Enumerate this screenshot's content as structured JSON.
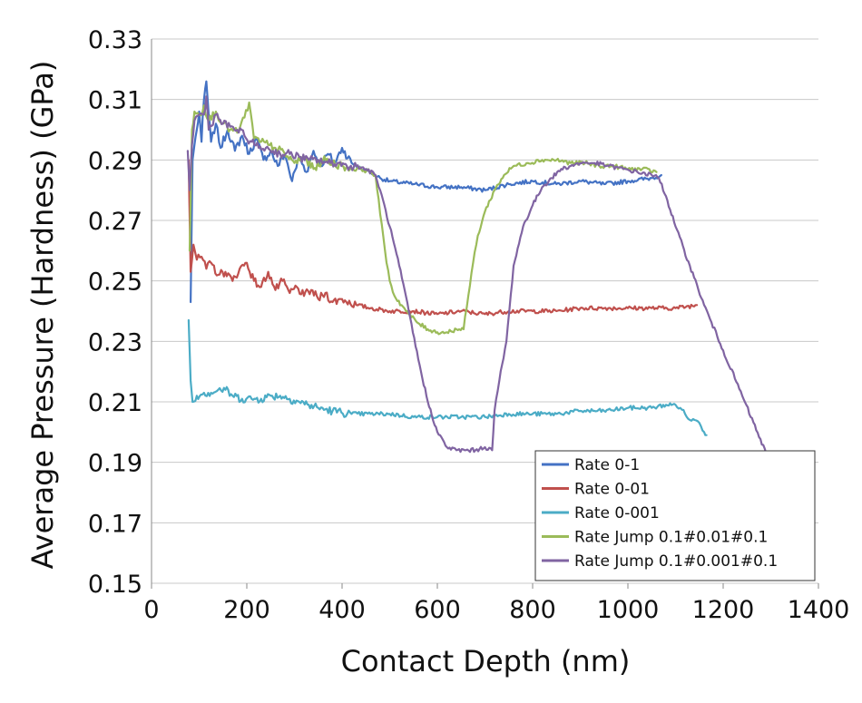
{
  "chart_data": {
    "type": "line",
    "title": "",
    "xlabel": "Contact Depth (nm)",
    "ylabel": "Average Pressure (Hardness) (GPa)",
    "xlim": [
      0,
      1400
    ],
    "ylim": [
      0.15,
      0.33
    ],
    "xticks": [
      0,
      200,
      400,
      600,
      800,
      1000,
      1200,
      1400
    ],
    "xtick_labels": [
      "0",
      "200",
      "400",
      "600",
      "800",
      "1000",
      "1200",
      "1400"
    ],
    "yticks": [
      0.15,
      0.17,
      0.19,
      0.21,
      0.23,
      0.25,
      0.27,
      0.29,
      0.31,
      0.33
    ],
    "ytick_labels": [
      "0.15",
      "0.17",
      "0.19",
      "0.21",
      "0.23",
      "0.25",
      "0.27",
      "0.29",
      "0.31",
      "0.33"
    ],
    "grid": "horizontal",
    "legend_position": "bottom-right",
    "series": [
      {
        "name": "Rate 0-1",
        "color": "#4472C4",
        "points": [
          [
            82,
            0.243
          ],
          [
            86,
            0.29
          ],
          [
            90,
            0.295
          ],
          [
            95,
            0.3
          ],
          [
            100,
            0.306
          ],
          [
            105,
            0.296
          ],
          [
            110,
            0.31
          ],
          [
            115,
            0.316
          ],
          [
            120,
            0.305
          ],
          [
            125,
            0.296
          ],
          [
            135,
            0.302
          ],
          [
            145,
            0.294
          ],
          [
            160,
            0.3
          ],
          [
            175,
            0.293
          ],
          [
            190,
            0.298
          ],
          [
            205,
            0.292
          ],
          [
            220,
            0.297
          ],
          [
            235,
            0.29
          ],
          [
            250,
            0.293
          ],
          [
            265,
            0.288
          ],
          [
            280,
            0.292
          ],
          [
            295,
            0.283
          ],
          [
            310,
            0.291
          ],
          [
            325,
            0.286
          ],
          [
            340,
            0.293
          ],
          [
            355,
            0.288
          ],
          [
            370,
            0.292
          ],
          [
            385,
            0.289
          ],
          [
            400,
            0.294
          ],
          [
            420,
            0.289
          ],
          [
            440,
            0.287
          ],
          [
            460,
            0.286
          ],
          [
            480,
            0.284
          ],
          [
            500,
            0.283
          ],
          [
            550,
            0.282
          ],
          [
            600,
            0.281
          ],
          [
            650,
            0.281
          ],
          [
            700,
            0.28
          ],
          [
            750,
            0.282
          ],
          [
            800,
            0.283
          ],
          [
            850,
            0.282
          ],
          [
            900,
            0.283
          ],
          [
            950,
            0.282
          ],
          [
            1000,
            0.283
          ],
          [
            1050,
            0.284
          ],
          [
            1070,
            0.285
          ]
        ]
      },
      {
        "name": "Rate 0-01",
        "color": "#C0504D",
        "points": [
          [
            78,
            0.29
          ],
          [
            82,
            0.253
          ],
          [
            88,
            0.262
          ],
          [
            95,
            0.257
          ],
          [
            105,
            0.258
          ],
          [
            115,
            0.254
          ],
          [
            125,
            0.256
          ],
          [
            140,
            0.252
          ],
          [
            155,
            0.253
          ],
          [
            170,
            0.25
          ],
          [
            185,
            0.254
          ],
          [
            200,
            0.256
          ],
          [
            215,
            0.25
          ],
          [
            230,
            0.248
          ],
          [
            245,
            0.253
          ],
          [
            260,
            0.247
          ],
          [
            275,
            0.25
          ],
          [
            290,
            0.246
          ],
          [
            305,
            0.248
          ],
          [
            320,
            0.245
          ],
          [
            335,
            0.247
          ],
          [
            350,
            0.244
          ],
          [
            365,
            0.246
          ],
          [
            380,
            0.243
          ],
          [
            400,
            0.244
          ],
          [
            430,
            0.242
          ],
          [
            460,
            0.241
          ],
          [
            500,
            0.24
          ],
          [
            550,
            0.24
          ],
          [
            600,
            0.239
          ],
          [
            650,
            0.24
          ],
          [
            700,
            0.239
          ],
          [
            750,
            0.24
          ],
          [
            800,
            0.24
          ],
          [
            850,
            0.24
          ],
          [
            900,
            0.241
          ],
          [
            950,
            0.241
          ],
          [
            1000,
            0.241
          ],
          [
            1050,
            0.241
          ],
          [
            1100,
            0.241
          ],
          [
            1145,
            0.242
          ]
        ]
      },
      {
        "name": "Rate 0-001",
        "color": "#4BACC6",
        "points": [
          [
            78,
            0.237
          ],
          [
            82,
            0.217
          ],
          [
            86,
            0.21
          ],
          [
            95,
            0.212
          ],
          [
            110,
            0.213
          ],
          [
            125,
            0.213
          ],
          [
            140,
            0.214
          ],
          [
            155,
            0.214
          ],
          [
            170,
            0.212
          ],
          [
            190,
            0.211
          ],
          [
            210,
            0.211
          ],
          [
            230,
            0.211
          ],
          [
            250,
            0.212
          ],
          [
            270,
            0.212
          ],
          [
            290,
            0.211
          ],
          [
            310,
            0.21
          ],
          [
            330,
            0.209
          ],
          [
            350,
            0.208
          ],
          [
            380,
            0.207
          ],
          [
            420,
            0.206
          ],
          [
            460,
            0.206
          ],
          [
            500,
            0.206
          ],
          [
            550,
            0.205
          ],
          [
            600,
            0.205
          ],
          [
            650,
            0.205
          ],
          [
            700,
            0.205
          ],
          [
            750,
            0.206
          ],
          [
            800,
            0.206
          ],
          [
            850,
            0.206
          ],
          [
            900,
            0.207
          ],
          [
            950,
            0.207
          ],
          [
            1000,
            0.208
          ],
          [
            1050,
            0.208
          ],
          [
            1080,
            0.209
          ],
          [
            1100,
            0.209
          ],
          [
            1110,
            0.208
          ],
          [
            1120,
            0.206
          ],
          [
            1130,
            0.204
          ],
          [
            1140,
            0.204
          ],
          [
            1150,
            0.203
          ],
          [
            1160,
            0.2
          ],
          [
            1165,
            0.199
          ]
        ]
      },
      {
        "name": "Rate Jump 0.1#0.01#0.1",
        "color": "#9BBB59",
        "points": [
          [
            80,
            0.26
          ],
          [
            85,
            0.3
          ],
          [
            90,
            0.306
          ],
          [
            100,
            0.305
          ],
          [
            110,
            0.308
          ],
          [
            120,
            0.303
          ],
          [
            135,
            0.306
          ],
          [
            150,
            0.302
          ],
          [
            165,
            0.3
          ],
          [
            180,
            0.299
          ],
          [
            195,
            0.304
          ],
          [
            205,
            0.309
          ],
          [
            215,
            0.297
          ],
          [
            230,
            0.296
          ],
          [
            245,
            0.295
          ],
          [
            260,
            0.294
          ],
          [
            280,
            0.292
          ],
          [
            300,
            0.289
          ],
          [
            320,
            0.291
          ],
          [
            340,
            0.287
          ],
          [
            360,
            0.29
          ],
          [
            380,
            0.289
          ],
          [
            400,
            0.288
          ],
          [
            420,
            0.287
          ],
          [
            440,
            0.287
          ],
          [
            460,
            0.286
          ],
          [
            470,
            0.285
          ],
          [
            480,
            0.272
          ],
          [
            490,
            0.26
          ],
          [
            500,
            0.25
          ],
          [
            510,
            0.245
          ],
          [
            525,
            0.242
          ],
          [
            540,
            0.239
          ],
          [
            560,
            0.236
          ],
          [
            580,
            0.234
          ],
          [
            600,
            0.233
          ],
          [
            620,
            0.233
          ],
          [
            640,
            0.234
          ],
          [
            655,
            0.234
          ],
          [
            665,
            0.245
          ],
          [
            675,
            0.256
          ],
          [
            685,
            0.265
          ],
          [
            700,
            0.273
          ],
          [
            720,
            0.28
          ],
          [
            740,
            0.285
          ],
          [
            760,
            0.288
          ],
          [
            790,
            0.289
          ],
          [
            820,
            0.29
          ],
          [
            850,
            0.29
          ],
          [
            880,
            0.289
          ],
          [
            910,
            0.289
          ],
          [
            940,
            0.288
          ],
          [
            970,
            0.288
          ],
          [
            1000,
            0.287
          ],
          [
            1030,
            0.287
          ],
          [
            1060,
            0.286
          ]
        ]
      },
      {
        "name": "Rate Jump 0.1#0.001#0.1",
        "color": "#8064A2",
        "points": [
          [
            76,
            0.293
          ],
          [
            80,
            0.28
          ],
          [
            85,
            0.295
          ],
          [
            90,
            0.303
          ],
          [
            100,
            0.305
          ],
          [
            110,
            0.305
          ],
          [
            115,
            0.311
          ],
          [
            120,
            0.3
          ],
          [
            135,
            0.305
          ],
          [
            150,
            0.302
          ],
          [
            165,
            0.301
          ],
          [
            180,
            0.3
          ],
          [
            195,
            0.298
          ],
          [
            210,
            0.296
          ],
          [
            225,
            0.294
          ],
          [
            240,
            0.294
          ],
          [
            255,
            0.293
          ],
          [
            270,
            0.292
          ],
          [
            290,
            0.292
          ],
          [
            310,
            0.291
          ],
          [
            330,
            0.29
          ],
          [
            350,
            0.29
          ],
          [
            370,
            0.289
          ],
          [
            390,
            0.289
          ],
          [
            410,
            0.288
          ],
          [
            430,
            0.288
          ],
          [
            450,
            0.287
          ],
          [
            470,
            0.285
          ],
          [
            480,
            0.28
          ],
          [
            500,
            0.268
          ],
          [
            520,
            0.255
          ],
          [
            540,
            0.24
          ],
          [
            560,
            0.224
          ],
          [
            580,
            0.21
          ],
          [
            600,
            0.2
          ],
          [
            620,
            0.195
          ],
          [
            640,
            0.194
          ],
          [
            660,
            0.194
          ],
          [
            680,
            0.194
          ],
          [
            700,
            0.195
          ],
          [
            715,
            0.194
          ],
          [
            720,
            0.207
          ],
          [
            730,
            0.217
          ],
          [
            745,
            0.23
          ],
          [
            760,
            0.255
          ],
          [
            780,
            0.268
          ],
          [
            800,
            0.275
          ],
          [
            820,
            0.281
          ],
          [
            840,
            0.284
          ],
          [
            860,
            0.287
          ],
          [
            880,
            0.288
          ],
          [
            900,
            0.289
          ],
          [
            930,
            0.289
          ],
          [
            960,
            0.288
          ],
          [
            990,
            0.287
          ],
          [
            1020,
            0.286
          ],
          [
            1050,
            0.285
          ],
          [
            1065,
            0.284
          ],
          [
            1080,
            0.278
          ],
          [
            1100,
            0.268
          ],
          [
            1130,
            0.255
          ],
          [
            1160,
            0.242
          ],
          [
            1200,
            0.227
          ],
          [
            1240,
            0.212
          ],
          [
            1290,
            0.193
          ]
        ]
      }
    ]
  }
}
